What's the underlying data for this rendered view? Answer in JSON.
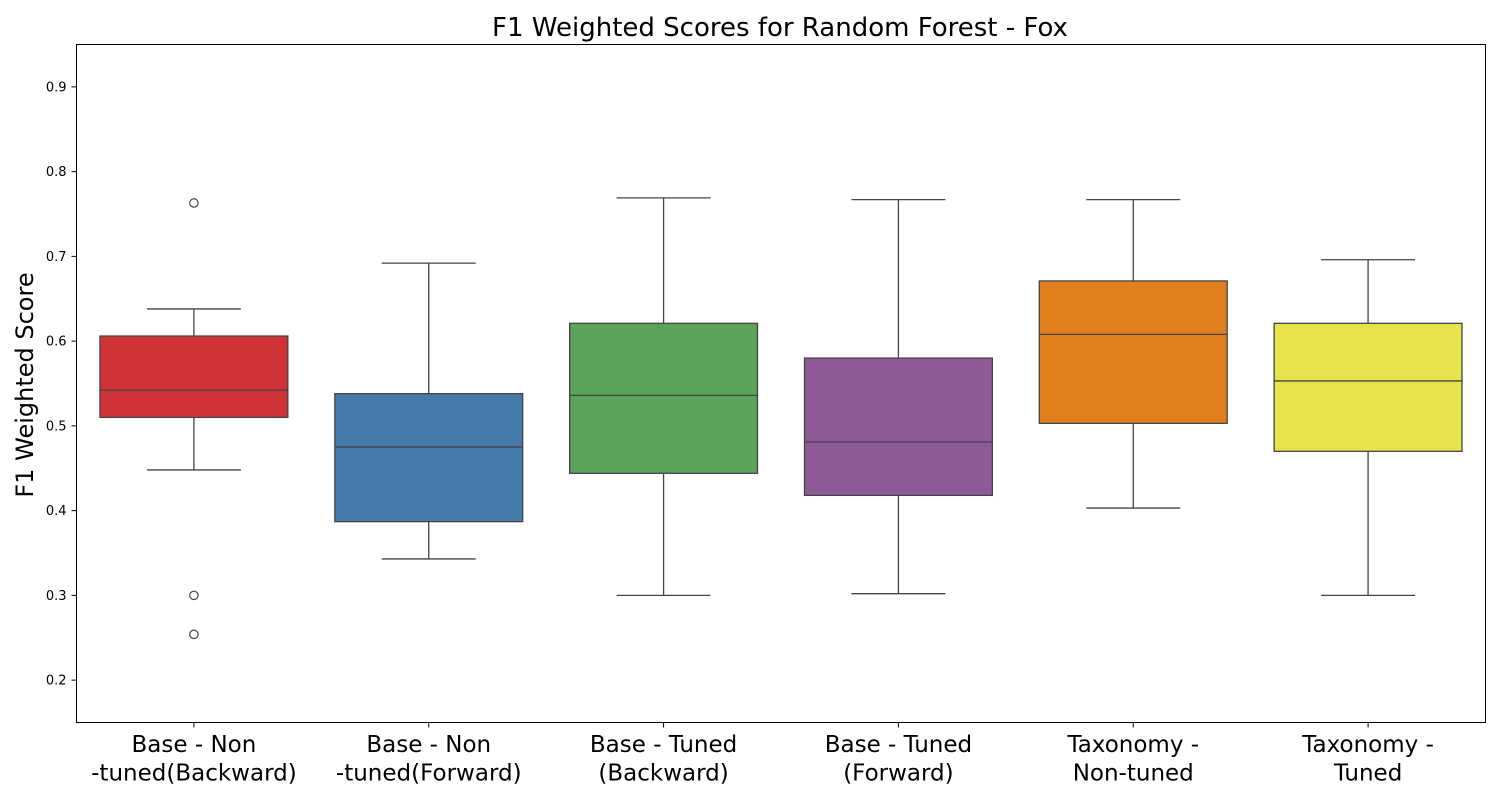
{
  "chart_data": {
    "type": "box",
    "title": "F1 Weighted Scores for Random Forest - Fox",
    "xlabel": "",
    "ylabel": "F1 Weighted Score",
    "ylim": [
      0.15,
      0.95
    ],
    "yticks": [
      0.2,
      0.3,
      0.4,
      0.5,
      0.6,
      0.7,
      0.8,
      0.9
    ],
    "ytick_labels": [
      "0.2",
      "0.3",
      "0.4",
      "0.5",
      "0.6",
      "0.7",
      "0.8",
      "0.9"
    ],
    "grid": false,
    "categories": [
      [
        "Base - Non",
        "-tuned(Backward)"
      ],
      [
        "Base - Non",
        "-tuned(Forward)"
      ],
      [
        "Base - Tuned",
        "(Backward)"
      ],
      [
        "Base - Tuned",
        "(Forward)"
      ],
      [
        "Taxonomy -",
        "Non-tuned"
      ],
      [
        "Taxonomy -",
        "Tuned"
      ]
    ],
    "boxes": [
      {
        "whisker_low": 0.448,
        "q1": 0.51,
        "median": 0.542,
        "q3": 0.606,
        "whisker_high": 0.638,
        "outliers": [
          0.763,
          0.3,
          0.254
        ],
        "color": "#d03236"
      },
      {
        "whisker_low": 0.343,
        "q1": 0.387,
        "median": 0.475,
        "q3": 0.538,
        "whisker_high": 0.692,
        "outliers": [],
        "color": "#457aaa"
      },
      {
        "whisker_low": 0.3,
        "q1": 0.444,
        "median": 0.536,
        "q3": 0.621,
        "whisker_high": 0.769,
        "outliers": [],
        "color": "#5ba358"
      },
      {
        "whisker_low": 0.302,
        "q1": 0.418,
        "median": 0.481,
        "q3": 0.58,
        "whisker_high": 0.767,
        "outliers": [],
        "color": "#8e5a98"
      },
      {
        "whisker_low": 0.403,
        "q1": 0.503,
        "median": 0.608,
        "q3": 0.671,
        "whisker_high": 0.767,
        "outliers": [],
        "color": "#e17f1f"
      },
      {
        "whisker_low": 0.3,
        "q1": 0.47,
        "median": 0.553,
        "q3": 0.621,
        "whisker_high": 0.696,
        "outliers": [],
        "color": "#e7e34d"
      }
    ]
  }
}
